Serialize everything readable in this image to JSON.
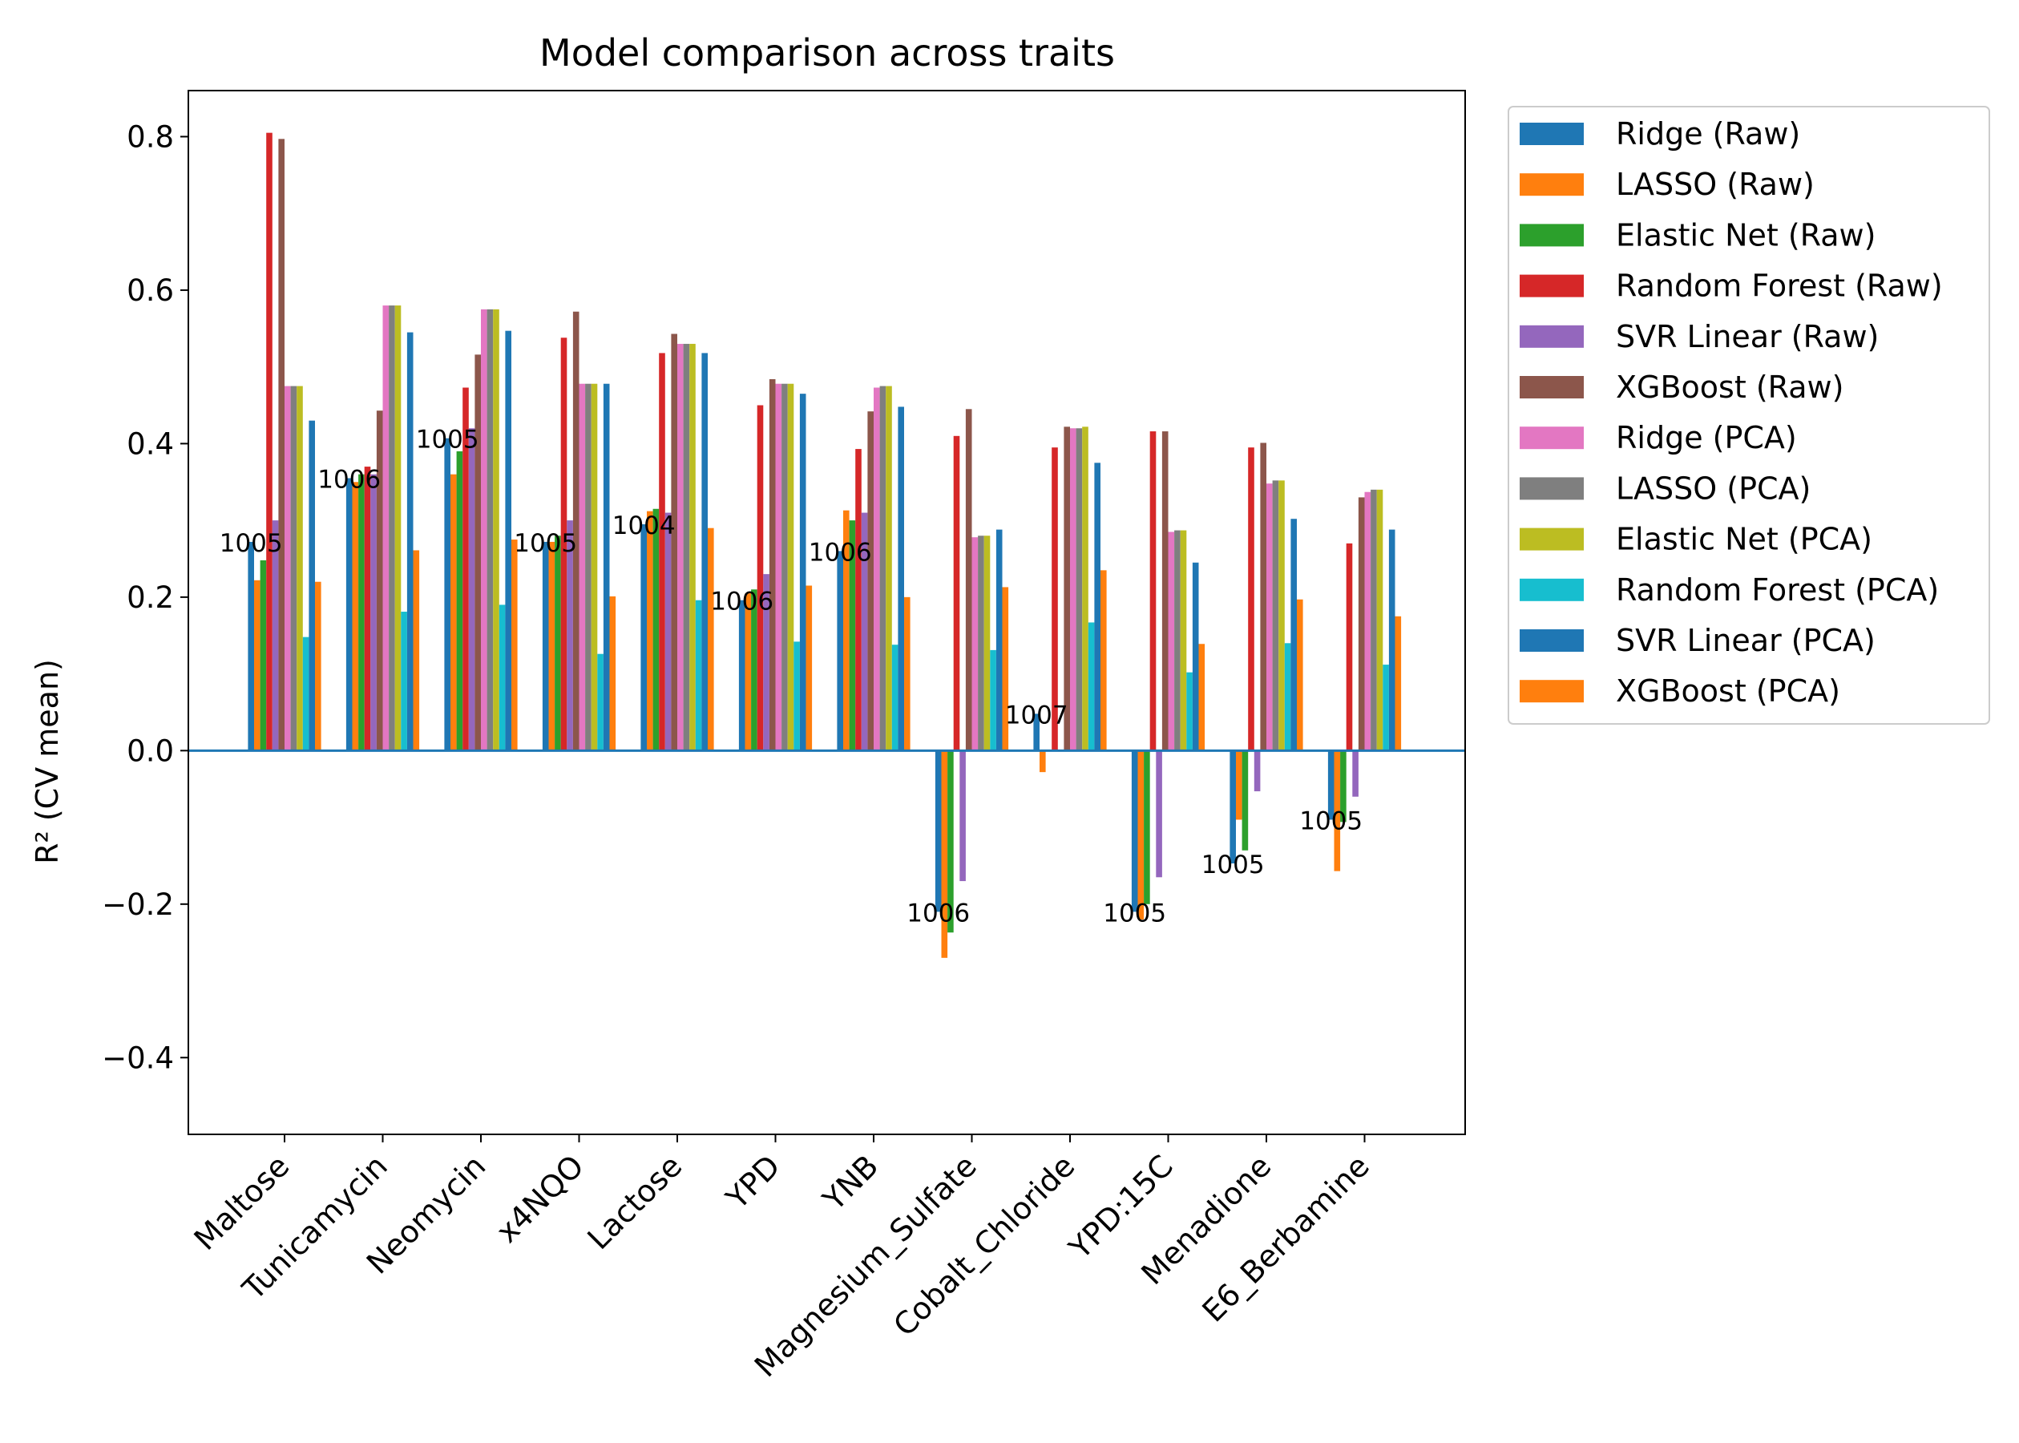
{
  "chart_data": {
    "type": "bar",
    "title": "Model comparison across traits",
    "xlabel": "",
    "ylabel": "R² (CV mean)",
    "ylim": [
      -0.5,
      0.86
    ],
    "yticks": [
      -0.4,
      -0.2,
      0.0,
      0.2,
      0.4,
      0.6,
      0.8
    ],
    "ytick_labels": [
      "−0.4",
      "−0.2",
      "0.0",
      "0.2",
      "0.4",
      "0.6",
      "0.8"
    ],
    "grid": false,
    "legend_position": "outside-right-top",
    "zero_line_color": "#1f77b4",
    "categories": [
      "Maltose",
      "Tunicamycin",
      "Neomycin",
      "x4NQO",
      "Lactose",
      "YPD",
      "YNB",
      "Magnesium_Sulfate",
      "Cobalt_Chloride",
      "YPD:15C",
      "Menadione",
      "E6_Berbamine"
    ],
    "series": [
      {
        "name": "Ridge (Raw)",
        "color": "#1f77b4",
        "values": [
          0.272,
          0.355,
          0.407,
          0.272,
          0.295,
          0.196,
          0.26,
          -0.21,
          0.048,
          -0.21,
          -0.147,
          -0.09
        ]
      },
      {
        "name": "LASSO (Raw)",
        "color": "#ff7f0e",
        "values": [
          0.222,
          0.35,
          0.36,
          0.272,
          0.312,
          0.205,
          0.313,
          -0.27,
          -0.028,
          -0.22,
          -0.09,
          -0.157
        ]
      },
      {
        "name": "Elastic Net (Raw)",
        "color": "#2ca02c",
        "values": [
          0.248,
          0.36,
          0.39,
          0.28,
          0.315,
          0.21,
          0.3,
          -0.237,
          0.0,
          -0.2,
          -0.13,
          -0.093
        ]
      },
      {
        "name": "Random Forest (Raw)",
        "color": "#d62728",
        "values": [
          0.805,
          0.37,
          0.473,
          0.538,
          0.518,
          0.45,
          0.393,
          0.41,
          0.395,
          0.416,
          0.395,
          0.27
        ]
      },
      {
        "name": "SVR Linear (Raw)",
        "color": "#9467bd",
        "values": [
          0.3,
          0.36,
          0.42,
          0.3,
          0.31,
          0.23,
          0.31,
          -0.17,
          0.0,
          -0.165,
          -0.053,
          -0.06
        ]
      },
      {
        "name": "XGBoost (Raw)",
        "color": "#8c564b",
        "values": [
          0.797,
          0.443,
          0.516,
          0.572,
          0.543,
          0.484,
          0.442,
          0.445,
          0.422,
          0.416,
          0.401,
          0.33
        ]
      },
      {
        "name": "Ridge (PCA)",
        "color": "#e377c2",
        "values": [
          0.475,
          0.58,
          0.575,
          0.478,
          0.53,
          0.478,
          0.473,
          0.278,
          0.42,
          0.285,
          0.348,
          0.337
        ]
      },
      {
        "name": "LASSO (PCA)",
        "color": "#7f7f7f",
        "values": [
          0.475,
          0.58,
          0.575,
          0.478,
          0.53,
          0.478,
          0.475,
          0.28,
          0.42,
          0.287,
          0.352,
          0.34
        ]
      },
      {
        "name": "Elastic Net (PCA)",
        "color": "#bcbd22",
        "values": [
          0.475,
          0.58,
          0.575,
          0.478,
          0.53,
          0.478,
          0.475,
          0.28,
          0.422,
          0.287,
          0.352,
          0.34
        ]
      },
      {
        "name": "Random Forest (PCA)",
        "color": "#17becf",
        "values": [
          0.148,
          0.181,
          0.19,
          0.126,
          0.196,
          0.142,
          0.138,
          0.131,
          0.167,
          0.102,
          0.14,
          0.112
        ]
      },
      {
        "name": "SVR Linear (PCA)",
        "color": "#1f77b4",
        "values": [
          0.43,
          0.545,
          0.547,
          0.478,
          0.518,
          0.465,
          0.448,
          0.288,
          0.375,
          0.245,
          0.302,
          0.288
        ]
      },
      {
        "name": "XGBoost (PCA)",
        "color": "#ff7f0e",
        "values": [
          0.22,
          0.261,
          0.275,
          0.201,
          0.29,
          0.215,
          0.2,
          0.213,
          0.235,
          0.139,
          0.197,
          0.175
        ]
      }
    ],
    "annotations": [
      {
        "category": "Maltose",
        "text": "1005",
        "y": 0.272
      },
      {
        "category": "Tunicamycin",
        "text": "1006",
        "y": 0.355
      },
      {
        "category": "Neomycin",
        "text": "1005",
        "y": 0.407
      },
      {
        "category": "x4NQO",
        "text": "1005",
        "y": 0.272
      },
      {
        "category": "Lactose",
        "text": "1004",
        "y": 0.295
      },
      {
        "category": "YPD",
        "text": "1006",
        "y": 0.196
      },
      {
        "category": "YNB",
        "text": "1006",
        "y": 0.26
      },
      {
        "category": "Magnesium_Sulfate",
        "text": "1006",
        "y": -0.21
      },
      {
        "category": "Cobalt_Chloride",
        "text": "1007",
        "y": 0.048
      },
      {
        "category": "YPD:15C",
        "text": "1005",
        "y": -0.21
      },
      {
        "category": "Menadione",
        "text": "1005",
        "y": -0.147
      },
      {
        "category": "E6_Berbamine",
        "text": "1005",
        "y": -0.09
      }
    ]
  }
}
